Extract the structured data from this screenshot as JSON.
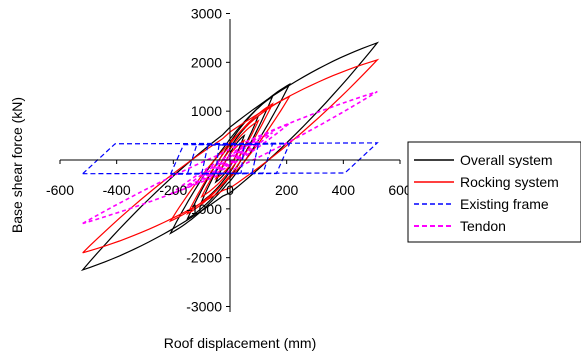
{
  "chart_data": {
    "type": "line",
    "title": "",
    "xlabel": "Roof displacement (mm)",
    "ylabel": "Base shear force (kN)",
    "xlim": [
      -600,
      600
    ],
    "ylim": [
      -3000,
      3000
    ],
    "x_ticks": [
      -600,
      -400,
      -200,
      0,
      200,
      400,
      600
    ],
    "y_ticks": [
      -3000,
      -2000,
      -1000,
      0,
      1000,
      2000,
      3000
    ],
    "x_tick_labels": [
      "-600",
      "-400",
      "-200",
      "0",
      "200",
      "400",
      "600"
    ],
    "y_tick_labels": [
      "-3000",
      "-2000",
      "-1000",
      "0",
      "1000",
      "2000",
      "3000"
    ],
    "grid": false,
    "legend_position": "right",
    "series": [
      {
        "name": "Overall system",
        "color": "#000000",
        "style": "solid",
        "loops": [
          {
            "amp_x": 50,
            "y_peak": 500,
            "y_min": -450
          },
          {
            "amp_x": 100,
            "y_peak": 900,
            "y_min": -850
          },
          {
            "amp_x": 150,
            "y_peak": 1300,
            "y_min": -1200
          },
          {
            "amp_x": 210,
            "y_peak": 1550,
            "y_min": -1500
          },
          {
            "amp_x": 520,
            "y_peak": 2400,
            "y_min": -2250
          }
        ]
      },
      {
        "name": "Rocking system",
        "color": "#ff0000",
        "style": "solid",
        "loops": [
          {
            "amp_x": 50,
            "y_peak": 400,
            "y_min": -380
          },
          {
            "amp_x": 100,
            "y_peak": 800,
            "y_min": -750
          },
          {
            "amp_x": 150,
            "y_peak": 1150,
            "y_min": -1100
          },
          {
            "amp_x": 210,
            "y_peak": 1300,
            "y_min": -1250
          },
          {
            "amp_x": 520,
            "y_peak": 2050,
            "y_min": -1900
          }
        ]
      },
      {
        "name": "Existing frame",
        "color": "#0000ff",
        "style": "dashed",
        "loops": [
          {
            "amp_x": 50,
            "y_peak": 320,
            "y_min": -280
          },
          {
            "amp_x": 100,
            "y_peak": 320,
            "y_min": -280
          },
          {
            "amp_x": 150,
            "y_peak": 330,
            "y_min": -280
          },
          {
            "amp_x": 210,
            "y_peak": 330,
            "y_min": -290
          },
          {
            "amp_x": 520,
            "y_peak": 350,
            "y_min": -280
          }
        ]
      },
      {
        "name": "Tendon",
        "color": "#ff00ff",
        "style": "dashed",
        "loops": [
          {
            "amp_x": 50,
            "y_peak": 200,
            "y_min": -180
          },
          {
            "amp_x": 100,
            "y_peak": 380,
            "y_min": -350
          },
          {
            "amp_x": 150,
            "y_peak": 560,
            "y_min": -520
          },
          {
            "amp_x": 210,
            "y_peak": 750,
            "y_min": -700
          },
          {
            "amp_x": 520,
            "y_peak": 1400,
            "y_min": -1300
          }
        ]
      }
    ]
  }
}
